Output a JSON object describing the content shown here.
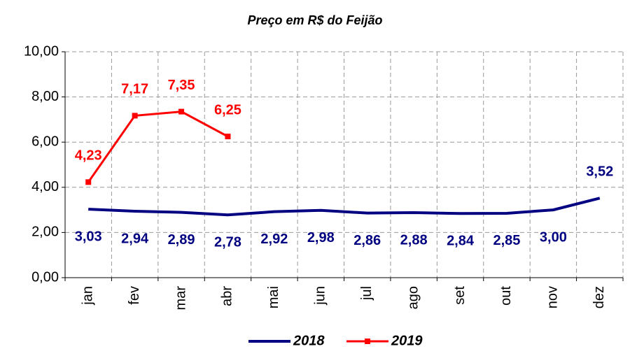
{
  "chart_data": {
    "type": "line",
    "title": "Preço em R$ do Feijão",
    "categories": [
      "jan",
      "fev",
      "mar",
      "abr",
      "mai",
      "jun",
      "jul",
      "ago",
      "set",
      "out",
      "nov",
      "dez"
    ],
    "series": [
      {
        "name": "2018",
        "color": "#000080",
        "values": [
          3.03,
          2.94,
          2.89,
          2.78,
          2.92,
          2.98,
          2.86,
          2.88,
          2.84,
          2.85,
          3.0,
          3.52
        ],
        "value_labels": [
          "3,03",
          "2,94",
          "2,89",
          "2,78",
          "2,92",
          "2,98",
          "2,86",
          "2,88",
          "2,84",
          "2,85",
          "3,00",
          "3,52"
        ]
      },
      {
        "name": "2019",
        "color": "#ff0000",
        "values": [
          4.23,
          7.17,
          7.35,
          6.25,
          null,
          null,
          null,
          null,
          null,
          null,
          null,
          null
        ],
        "value_labels": [
          "4,23",
          "7,17",
          "7,35",
          "6,25",
          null,
          null,
          null,
          null,
          null,
          null,
          null,
          null
        ]
      }
    ],
    "ylim": [
      0,
      10
    ],
    "yticks": [
      {
        "value": 0,
        "label": "0,00"
      },
      {
        "value": 2,
        "label": "2,00"
      },
      {
        "value": 4,
        "label": "4,00"
      },
      {
        "value": 6,
        "label": "6,00"
      },
      {
        "value": 8,
        "label": "8,00"
      },
      {
        "value": 10,
        "label": "10,00"
      }
    ],
    "grid": true,
    "legend": "bottom"
  }
}
